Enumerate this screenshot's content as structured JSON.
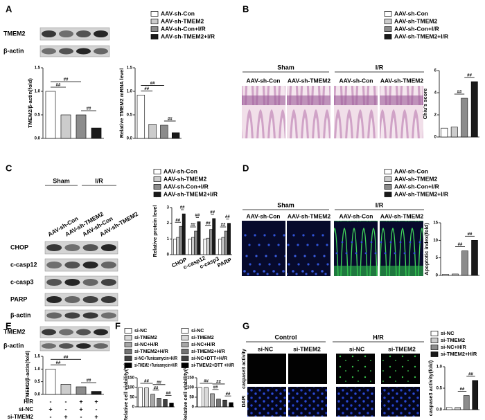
{
  "panels": [
    {
      "label": "A",
      "blots": [
        "TMEM2",
        "β-actin"
      ],
      "legend": [
        {
          "name": "AAV-sh-Con",
          "color": "#ffffff"
        },
        {
          "name": "AAV-sh-TMEM2",
          "color": "#cccccc"
        },
        {
          "name": "AAV-sh-Con+I/R",
          "color": "#8c8c8c"
        },
        {
          "name": "AAV-sh-TMEM2+I/R",
          "color": "#1a1a1a"
        }
      ],
      "charts": [
        {
          "type": "bar",
          "ylabel": "TMEM2/β-actin(fold)",
          "values": [
            1,
            0.5,
            0.5,
            0.22
          ],
          "colors": [
            "#ffffff",
            "#cccccc",
            "#8c8c8c",
            "#1a1a1a"
          ],
          "ylim": [
            0,
            1.5
          ],
          "yticks": [
            {
              "value": 0,
              "label": "0.0"
            },
            0.5,
            {
              "value": 1,
              "label": "1.0"
            },
            1.5
          ],
          "annotations": [
            "##",
            "##",
            "##"
          ]
        },
        {
          "type": "bar",
          "ylabel": "Relative TMEM2 mRNA level",
          "values": [
            0.92,
            0.3,
            0.28,
            0.12
          ],
          "colors": [
            "#ffffff",
            "#cccccc",
            "#8c8c8c",
            "#1a1a1a"
          ],
          "ylim": [
            0,
            1.5
          ],
          "yticks": [
            {
              "value": 0,
              "label": "0.0"
            },
            0.5,
            {
              "value": 1,
              "label": "1.0"
            },
            1.5
          ],
          "annotations": [
            "##",
            "##",
            "##"
          ]
        }
      ]
    },
    {
      "label": "B",
      "groups": [
        "Sham",
        "I/R"
      ],
      "lanes": [
        "AAV-sh-Con",
        "AAV-sh-TMEM2",
        "AAV-sh-Con",
        "AAV-sh-TMEM2"
      ],
      "legend": [
        {
          "name": "AAV-sh-Con",
          "color": "#ffffff"
        },
        {
          "name": "AAV-sh-TMEM2",
          "color": "#cccccc"
        },
        {
          "name": "AAV-sh-Con+I/R",
          "color": "#8c8c8c"
        },
        {
          "name": "AAV-sh-TMEM2+I/R",
          "color": "#1a1a1a"
        }
      ],
      "charts": [
        {
          "type": "bar",
          "ylabel": "Chiu's score",
          "values": [
            0.8,
            0.9,
            3.5,
            5
          ],
          "colors": [
            "#ffffff",
            "#cccccc",
            "#8c8c8c",
            "#1a1a1a"
          ],
          "ylim": [
            0,
            6
          ],
          "yticks": [
            0,
            2,
            4,
            6
          ],
          "annotations": [
            "##",
            "##"
          ]
        }
      ]
    },
    {
      "label": "C",
      "groups": [
        "Sham",
        "I/R"
      ],
      "lanes": [
        "AAV-sh-Con",
        "AAV-sh-TMEM2",
        "AAV-sh-Con",
        "AAV-sh-TMEM2"
      ],
      "blots": [
        "CHOP",
        "c-casp12",
        "c-casp3",
        "PARP",
        "β-actin"
      ],
      "charts": [
        {
          "type": "grouped-bar",
          "ylabel": "Relative protein level",
          "categories": [
            "CHOP",
            "c-casp12",
            "c-casp3",
            "PARP"
          ],
          "series": [
            {
              "name": "AAV-sh-Con",
              "color": "#ffffff",
              "values": [
                1,
                1,
                1,
                1
              ]
            },
            {
              "name": "AAV-sh-TMEM2",
              "color": "#cccccc",
              "values": [
                1.1,
                1.1,
                1.05,
                1.1
              ]
            },
            {
              "name": "AAV-sh-Con+I/R",
              "color": "#8c8c8c",
              "values": [
                1.8,
                1.5,
                1.6,
                1.5
              ]
            },
            {
              "name": "AAV-sh-TMEM2+I/R",
              "color": "#1a1a1a",
              "values": [
                2.6,
                2.1,
                2.3,
                2
              ]
            }
          ],
          "ylim": [
            0,
            3
          ],
          "yticks": [
            0,
            1,
            2,
            3
          ],
          "annotations": [
            "##",
            "##",
            "##",
            "##",
            "##",
            "##",
            "##",
            "##"
          ]
        }
      ]
    },
    {
      "label": "D",
      "groups": [
        "Sham",
        "I/R"
      ],
      "lanes": [
        "AAV-sh-Con",
        "AAV-sh-TMEM2",
        "AAV-sh-Con",
        "AAV-sh-TMEM2"
      ],
      "legend": [
        {
          "name": "AAV-sh-Con",
          "color": "#ffffff"
        },
        {
          "name": "AAV-sh-TMEM2",
          "color": "#cccccc"
        },
        {
          "name": "AAV-sh-Con+I/R",
          "color": "#8c8c8c"
        },
        {
          "name": "AAV-sh-TMEM2+I/R",
          "color": "#1a1a1a"
        }
      ],
      "charts": [
        {
          "type": "bar",
          "ylabel": "Apoptotic index(fold)",
          "values": [
            0.3,
            0.4,
            7,
            10
          ],
          "colors": [
            "#ffffff",
            "#cccccc",
            "#8c8c8c",
            "#1a1a1a"
          ],
          "ylim": [
            0,
            15
          ],
          "yticks": [
            0,
            5,
            10,
            15
          ],
          "annotations": [
            "##",
            "##"
          ]
        }
      ]
    },
    {
      "label": "E",
      "blots": [
        "TMEM2",
        "β-actin"
      ],
      "charts": [
        {
          "type": "bar",
          "ylabel": "TMEM2/β-actin(fold)",
          "values": [
            1,
            0.4,
            0.3,
            0.12
          ],
          "colors": [
            "#ffffff",
            "#cccccc",
            "#8c8c8c",
            "#1a1a1a"
          ],
          "ylim": [
            0,
            1.5
          ],
          "yticks": [
            {
              "value": 0,
              "label": "0.0"
            },
            0.5,
            {
              "value": 1,
              "label": "1.0"
            },
            1.5
          ],
          "annotations": [
            "##",
            "##",
            "##"
          ]
        }
      ],
      "conditions": [
        {
          "name": "H/R",
          "marks": [
            "-",
            "-",
            "+",
            "+"
          ]
        },
        {
          "name": "si-NC",
          "marks": [
            "+",
            "-",
            "+",
            "-"
          ]
        },
        {
          "name": "si-TMEM2",
          "marks": [
            "-",
            "+",
            "-",
            "+"
          ]
        }
      ]
    },
    {
      "label": "F",
      "legends": [
        [
          {
            "name": "si-NC",
            "color": "#ffffff"
          },
          {
            "name": "si-TMEM2",
            "color": "#d9d9d9"
          },
          {
            "name": "si-NC+H/R",
            "color": "#a6a6a6"
          },
          {
            "name": "si-TMEM2+H/R",
            "color": "#737373"
          },
          {
            "name": "si-NC+Tunicamycin+H/R",
            "color": "#404040"
          },
          {
            "name": "si-TMEM2 +Tunicamycin+H/R",
            "color": "#000000"
          }
        ],
        [
          {
            "name": "si-NC",
            "color": "#ffffff"
          },
          {
            "name": "si-TMEM2",
            "color": "#d9d9d9"
          },
          {
            "name": "si-NC+H/R",
            "color": "#a6a6a6"
          },
          {
            "name": "si-TMEM2+H/R",
            "color": "#737373"
          },
          {
            "name": "si-NC+DTT+H/R",
            "color": "#404040"
          },
          {
            "name": "si-TMEM2+DTT +H/R",
            "color": "#000000"
          }
        ]
      ],
      "charts": [
        {
          "type": "bar",
          "ylabel": "Relative cell viability(%)",
          "values": [
            100,
            98,
            65,
            45,
            38,
            20
          ],
          "colors": [
            "#ffffff",
            "#d9d9d9",
            "#a6a6a6",
            "#737373",
            "#404040",
            "#000000"
          ],
          "ylim": [
            0,
            150
          ],
          "yticks": [
            0,
            50,
            100,
            150
          ],
          "annotations": [
            "##",
            "##",
            "##",
            "##"
          ]
        },
        {
          "type": "bar",
          "ylabel": "Relative cell viability(%)",
          "values": [
            100,
            100,
            68,
            40,
            35,
            22
          ],
          "colors": [
            "#ffffff",
            "#d9d9d9",
            "#a6a6a6",
            "#737373",
            "#404040",
            "#000000"
          ],
          "ylim": [
            0,
            150
          ],
          "yticks": [
            0,
            50,
            100,
            150
          ],
          "annotations": [
            "##",
            "##",
            "##",
            "##"
          ]
        }
      ]
    },
    {
      "label": "G",
      "groups": [
        "Control",
        "H/R"
      ],
      "lanes": [
        "si-NC",
        "si-TMEM2",
        "si-NC",
        "si-TMEM2"
      ],
      "rows": [
        "caspase3 activity",
        "DAPI"
      ],
      "legend": [
        {
          "name": "si-NC",
          "color": "#ffffff"
        },
        {
          "name": "si-TMEM2",
          "color": "#cccccc"
        },
        {
          "name": "si-NC+H/R",
          "color": "#8c8c8c"
        },
        {
          "name": "si-TMEM2+H/R",
          "color": "#1a1a1a"
        }
      ],
      "charts": [
        {
          "type": "bar",
          "ylabel": "caspase3 activity(fold)",
          "values": [
            0.05,
            0.05,
            0.33,
            0.68
          ],
          "colors": [
            "#ffffff",
            "#cccccc",
            "#8c8c8c",
            "#1a1a1a"
          ],
          "ylim": [
            0,
            1
          ],
          "yticks": [
            {
              "value": 0,
              "label": "0.0"
            },
            0.5,
            {
              "value": 1,
              "label": "1.0"
            }
          ],
          "annotations": [
            "##",
            "##"
          ]
        }
      ]
    }
  ]
}
